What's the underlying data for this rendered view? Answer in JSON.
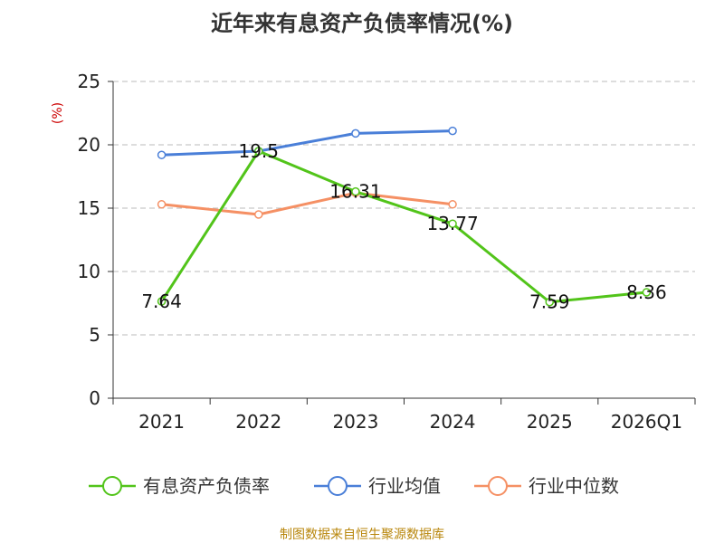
{
  "chart_data": {
    "type": "line",
    "title": "近年来有息资产负债率情况(%)",
    "ylabel": "(%)",
    "xlabel": "",
    "categories": [
      "2021",
      "2022",
      "2023",
      "2024",
      "2025",
      "2026Q1"
    ],
    "ylim": [
      0,
      25
    ],
    "yticks": [
      0,
      5,
      10,
      15,
      20,
      25
    ],
    "grid": true,
    "legend_position": "bottom",
    "series": [
      {
        "name": "有息资产负债率",
        "color": "#52c41a",
        "values": [
          7.64,
          19.5,
          16.31,
          13.77,
          7.59,
          8.36
        ],
        "labels": [
          "7.64",
          "19.5",
          "16.31",
          "13.77",
          "7.59",
          "8.36"
        ]
      },
      {
        "name": "行业均值",
        "color": "#4a7fd8",
        "values": [
          19.2,
          19.5,
          20.9,
          21.1,
          null,
          null
        ]
      },
      {
        "name": "行业中位数",
        "color": "#f59064",
        "values": [
          15.3,
          14.5,
          16.2,
          15.3,
          null,
          null
        ]
      }
    ],
    "source": "制图数据来自恒生聚源数据库"
  }
}
